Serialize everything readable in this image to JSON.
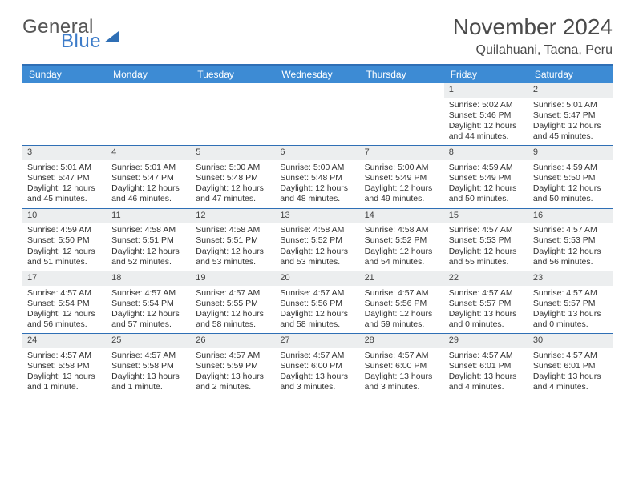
{
  "brand": {
    "word1": "General",
    "word2": "Blue"
  },
  "title": "November 2024",
  "location": "Quilahuani, Tacna, Peru",
  "colors": {
    "header_bar": "#3d8bd4",
    "rule": "#2f6fb5",
    "daynum_bg": "#eceeef",
    "text": "#333333",
    "brand_blue": "#3d7cc9",
    "brand_grey": "#555555",
    "background": "#ffffff"
  },
  "typography": {
    "title_fontsize": 28,
    "location_fontsize": 16,
    "dow_fontsize": 12,
    "cell_fontsize": 10.5
  },
  "daysOfWeek": [
    "Sunday",
    "Monday",
    "Tuesday",
    "Wednesday",
    "Thursday",
    "Friday",
    "Saturday"
  ],
  "grid": {
    "leading_blanks": 5,
    "days": [
      {
        "n": 1,
        "sunrise": "5:02 AM",
        "sunset": "5:46 PM",
        "daylight": "12 hours and 44 minutes."
      },
      {
        "n": 2,
        "sunrise": "5:01 AM",
        "sunset": "5:47 PM",
        "daylight": "12 hours and 45 minutes."
      },
      {
        "n": 3,
        "sunrise": "5:01 AM",
        "sunset": "5:47 PM",
        "daylight": "12 hours and 45 minutes."
      },
      {
        "n": 4,
        "sunrise": "5:01 AM",
        "sunset": "5:47 PM",
        "daylight": "12 hours and 46 minutes."
      },
      {
        "n": 5,
        "sunrise": "5:00 AM",
        "sunset": "5:48 PM",
        "daylight": "12 hours and 47 minutes."
      },
      {
        "n": 6,
        "sunrise": "5:00 AM",
        "sunset": "5:48 PM",
        "daylight": "12 hours and 48 minutes."
      },
      {
        "n": 7,
        "sunrise": "5:00 AM",
        "sunset": "5:49 PM",
        "daylight": "12 hours and 49 minutes."
      },
      {
        "n": 8,
        "sunrise": "4:59 AM",
        "sunset": "5:49 PM",
        "daylight": "12 hours and 50 minutes."
      },
      {
        "n": 9,
        "sunrise": "4:59 AM",
        "sunset": "5:50 PM",
        "daylight": "12 hours and 50 minutes."
      },
      {
        "n": 10,
        "sunrise": "4:59 AM",
        "sunset": "5:50 PM",
        "daylight": "12 hours and 51 minutes."
      },
      {
        "n": 11,
        "sunrise": "4:58 AM",
        "sunset": "5:51 PM",
        "daylight": "12 hours and 52 minutes."
      },
      {
        "n": 12,
        "sunrise": "4:58 AM",
        "sunset": "5:51 PM",
        "daylight": "12 hours and 53 minutes."
      },
      {
        "n": 13,
        "sunrise": "4:58 AM",
        "sunset": "5:52 PM",
        "daylight": "12 hours and 53 minutes."
      },
      {
        "n": 14,
        "sunrise": "4:58 AM",
        "sunset": "5:52 PM",
        "daylight": "12 hours and 54 minutes."
      },
      {
        "n": 15,
        "sunrise": "4:57 AM",
        "sunset": "5:53 PM",
        "daylight": "12 hours and 55 minutes."
      },
      {
        "n": 16,
        "sunrise": "4:57 AM",
        "sunset": "5:53 PM",
        "daylight": "12 hours and 56 minutes."
      },
      {
        "n": 17,
        "sunrise": "4:57 AM",
        "sunset": "5:54 PM",
        "daylight": "12 hours and 56 minutes."
      },
      {
        "n": 18,
        "sunrise": "4:57 AM",
        "sunset": "5:54 PM",
        "daylight": "12 hours and 57 minutes."
      },
      {
        "n": 19,
        "sunrise": "4:57 AM",
        "sunset": "5:55 PM",
        "daylight": "12 hours and 58 minutes."
      },
      {
        "n": 20,
        "sunrise": "4:57 AM",
        "sunset": "5:56 PM",
        "daylight": "12 hours and 58 minutes."
      },
      {
        "n": 21,
        "sunrise": "4:57 AM",
        "sunset": "5:56 PM",
        "daylight": "12 hours and 59 minutes."
      },
      {
        "n": 22,
        "sunrise": "4:57 AM",
        "sunset": "5:57 PM",
        "daylight": "13 hours and 0 minutes."
      },
      {
        "n": 23,
        "sunrise": "4:57 AM",
        "sunset": "5:57 PM",
        "daylight": "13 hours and 0 minutes."
      },
      {
        "n": 24,
        "sunrise": "4:57 AM",
        "sunset": "5:58 PM",
        "daylight": "13 hours and 1 minute."
      },
      {
        "n": 25,
        "sunrise": "4:57 AM",
        "sunset": "5:58 PM",
        "daylight": "13 hours and 1 minute."
      },
      {
        "n": 26,
        "sunrise": "4:57 AM",
        "sunset": "5:59 PM",
        "daylight": "13 hours and 2 minutes."
      },
      {
        "n": 27,
        "sunrise": "4:57 AM",
        "sunset": "6:00 PM",
        "daylight": "13 hours and 3 minutes."
      },
      {
        "n": 28,
        "sunrise": "4:57 AM",
        "sunset": "6:00 PM",
        "daylight": "13 hours and 3 minutes."
      },
      {
        "n": 29,
        "sunrise": "4:57 AM",
        "sunset": "6:01 PM",
        "daylight": "13 hours and 4 minutes."
      },
      {
        "n": 30,
        "sunrise": "4:57 AM",
        "sunset": "6:01 PM",
        "daylight": "13 hours and 4 minutes."
      }
    ]
  },
  "labels": {
    "sunrise": "Sunrise:",
    "sunset": "Sunset:",
    "daylight": "Daylight:"
  }
}
